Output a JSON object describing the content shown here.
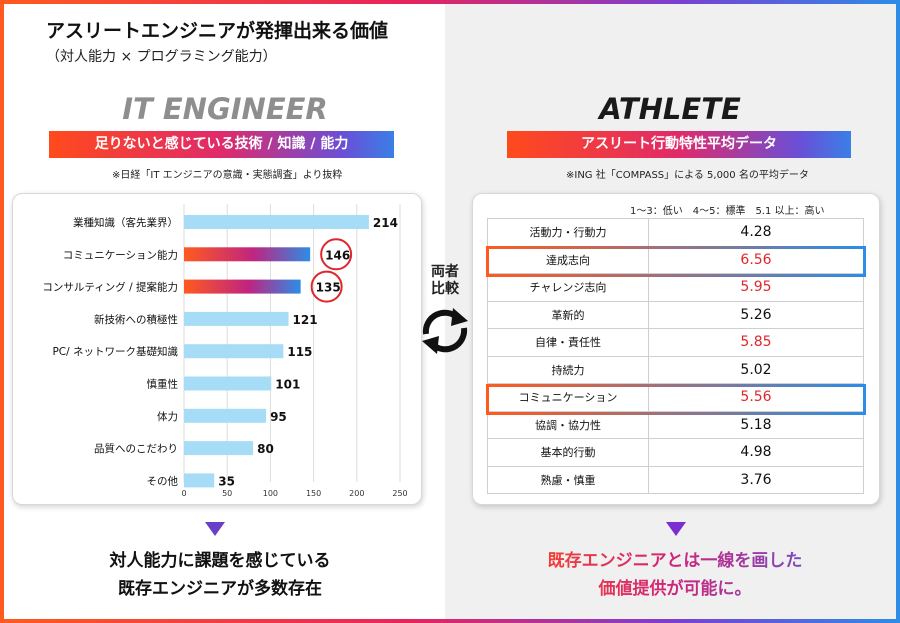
{
  "title": "アスリートエンジニアが発揮出来る価値",
  "subtitle": "（対人能力 × プログラミング能力）",
  "left": {
    "heading": "IT ENGINEER",
    "banner": "足りないと感じている技術 / 知識 / 能力",
    "note": "※日経「IT エンジニアの意識・実態調査」より抜粋",
    "bottom_line1": "対人能力に課題を感じている",
    "bottom_line2": "既存エンジニアが多数存在"
  },
  "right": {
    "heading": "ATHLETE",
    "banner": "アスリート行動特性平均データ",
    "note": "※ING 社「COMPASS」による 5,000 名の平均データ",
    "legend": "1～3：低い　4～5：標準　5.1 以上：高い",
    "bottom_line1": "既存エンジニアとは一線を画した",
    "bottom_line2": "価値提供が可能に。"
  },
  "compare": {
    "line1": "両者",
    "line2": "比較"
  },
  "colors": {
    "bar": "#a6dcf5",
    "highlight_circle": "#e0262c",
    "red_value": "#e0262c"
  },
  "chart_data": {
    "type": "bar",
    "orientation": "horizontal",
    "categories": [
      "業種知識（客先業界）",
      "コミュニケーション能力",
      "コンサルティング / 提案能力",
      "新技術への積極性",
      "PC/ ネットワーク基礎知識",
      "慎重性",
      "体力",
      "品質へのこだわり",
      "その他"
    ],
    "values": [
      214,
      146,
      135,
      121,
      115,
      101,
      95,
      80,
      35
    ],
    "highlighted": [
      "コミュニケーション能力",
      "コンサルティング / 提案能力"
    ],
    "xlim": [
      0,
      250
    ],
    "xticks": [
      0,
      50,
      100,
      150,
      200,
      250
    ],
    "grid": true
  },
  "athlete_table": {
    "rows": [
      {
        "label": "活動力・行動力",
        "value": "4.28",
        "red": false
      },
      {
        "label": "達成志向",
        "value": "6.56",
        "red": true
      },
      {
        "label": "チャレンジ志向",
        "value": "5.95",
        "red": true
      },
      {
        "label": "革新的",
        "value": "5.26",
        "red": false
      },
      {
        "label": "自律・責任性",
        "value": "5.85",
        "red": true
      },
      {
        "label": "持続力",
        "value": "5.02",
        "red": false
      },
      {
        "label": "コミュニケーション",
        "value": "5.56",
        "red": true
      },
      {
        "label": "協調・協力性",
        "value": "5.18",
        "red": false
      },
      {
        "label": "基本的行動",
        "value": "4.98",
        "red": false
      },
      {
        "label": "熟慮・慎重",
        "value": "3.76",
        "red": false
      }
    ]
  }
}
